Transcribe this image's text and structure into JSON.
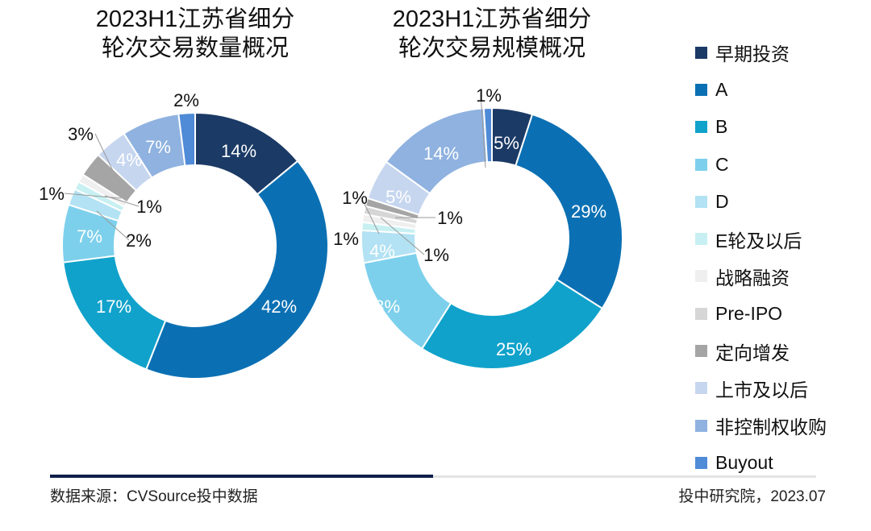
{
  "chart_data": [
    {
      "type": "donut",
      "title": "2023H1江苏省细分\n轮次交易数量概况",
      "categories": [
        "早期投资",
        "A",
        "B",
        "C",
        "D",
        "E轮及以后",
        "战略融资",
        "Pre-IPO",
        "定向增发",
        "上市及以后",
        "非控制权收购",
        "Buyout"
      ],
      "values": [
        14,
        42,
        17,
        7,
        2,
        1,
        1,
        0,
        3,
        4,
        7,
        2
      ],
      "labels": [
        "14%",
        "42%",
        "17%",
        "7%",
        "2%",
        "1%",
        "1%",
        "",
        "3%",
        "4%",
        "7%",
        "2%"
      ]
    },
    {
      "type": "donut",
      "title": "2023H1江苏省细分\n轮次交易规模概况",
      "categories": [
        "早期投资",
        "A",
        "B",
        "C",
        "D",
        "E轮及以后",
        "战略融资",
        "Pre-IPO",
        "定向增发",
        "上市及以后",
        "非控制权收购",
        "Buyout"
      ],
      "values": [
        5,
        29,
        25,
        13,
        4,
        1,
        1,
        1,
        1,
        5,
        14,
        1
      ],
      "labels": [
        "5%",
        "29%",
        "25%",
        "13%",
        "4%",
        "1%",
        "1%",
        "1%",
        "1%",
        "5%",
        "14%",
        "1%"
      ]
    }
  ],
  "titles": [
    [
      "2023H1江苏省细分",
      "轮次交易数量概况"
    ],
    [
      "2023H1江苏省细分",
      "轮次交易规模概况"
    ]
  ],
  "legend": [
    "早期投资",
    "A",
    "B",
    "C",
    "D",
    "E轮及以后",
    "战略融资",
    "Pre-IPO",
    "定向增发",
    "上市及以后",
    "非控制权收购",
    "Buyout"
  ],
  "colors": [
    "#1b3a66",
    "#0b70b3",
    "#10a2cb",
    "#7dd0ec",
    "#b2e2f3",
    "#c8f0f2",
    "#efefef",
    "#d6d6d6",
    "#a5a5a5",
    "#c6d6ef",
    "#8fb2e0",
    "#4f8bd6"
  ],
  "footer": {
    "source": "数据来源：CVSource投中数据",
    "org": "投中研究院，2023.07"
  }
}
